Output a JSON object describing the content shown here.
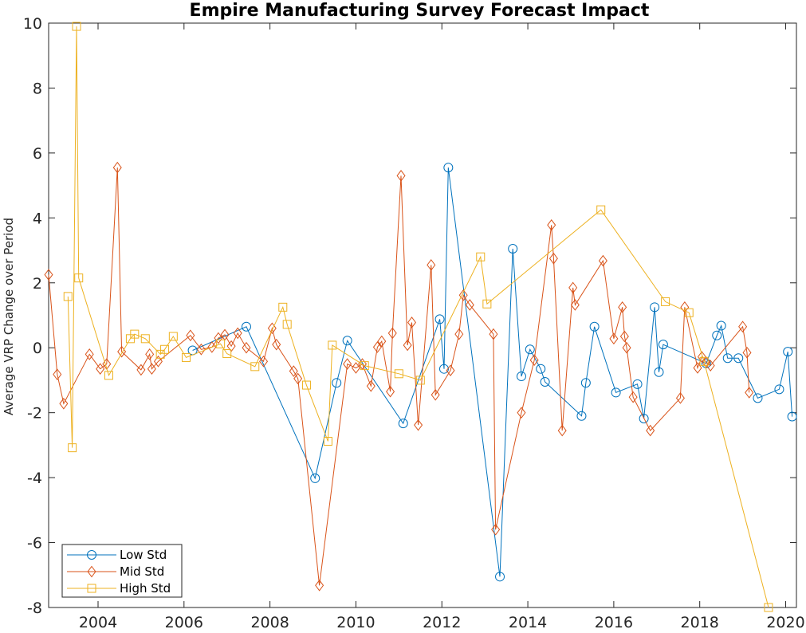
{
  "chart_data": {
    "type": "line",
    "title": "Empire Manufacturing Survey Forecast Impact",
    "xlabel": "",
    "ylabel": "Average VRP Change over Period",
    "xlim": [
      2002.85,
      2020.25
    ],
    "ylim": [
      -8,
      10
    ],
    "xticks": [
      "2004",
      "2006",
      "2008",
      "2010",
      "2012",
      "2014",
      "2016",
      "2018",
      "2020"
    ],
    "yticks": [
      "10",
      "8",
      "6",
      "4",
      "2",
      "0",
      "-2",
      "-4",
      "-6",
      "-8"
    ],
    "legend_position": "bottom-left",
    "grid": false,
    "series": [
      {
        "name": "Low Std",
        "color": "#0072BD",
        "marker": "circle",
        "points": [
          [
            2006.2,
            -0.08
          ],
          [
            2007.45,
            0.65
          ],
          [
            2009.05,
            -4.02
          ],
          [
            2009.55,
            -1.08
          ],
          [
            2009.8,
            0.22
          ],
          [
            2011.1,
            -2.33
          ],
          [
            2011.95,
            0.88
          ],
          [
            2012.05,
            -0.65
          ],
          [
            2012.15,
            5.55
          ],
          [
            2013.35,
            -7.05
          ],
          [
            2013.65,
            3.05
          ],
          [
            2013.85,
            -0.88
          ],
          [
            2014.05,
            -0.05
          ],
          [
            2014.3,
            -0.65
          ],
          [
            2014.4,
            -1.05
          ],
          [
            2015.25,
            -2.1
          ],
          [
            2015.35,
            -1.08
          ],
          [
            2015.55,
            0.65
          ],
          [
            2016.05,
            -1.38
          ],
          [
            2016.55,
            -1.12
          ],
          [
            2016.7,
            -2.18
          ],
          [
            2016.95,
            1.25
          ],
          [
            2017.05,
            -0.75
          ],
          [
            2017.15,
            0.1
          ],
          [
            2018.15,
            -0.48
          ],
          [
            2018.4,
            0.38
          ],
          [
            2018.5,
            0.68
          ],
          [
            2018.65,
            -0.32
          ],
          [
            2018.9,
            -0.32
          ],
          [
            2019.35,
            -1.55
          ],
          [
            2019.85,
            -1.28
          ],
          [
            2020.05,
            -0.12
          ],
          [
            2020.15,
            -2.12
          ]
        ]
      },
      {
        "name": "Mid Std",
        "color": "#D95319",
        "marker": "diamond",
        "points": [
          [
            2002.85,
            2.25
          ],
          [
            2003.05,
            -0.82
          ],
          [
            2003.2,
            -1.72
          ],
          [
            2003.8,
            -0.2
          ],
          [
            2004.05,
            -0.65
          ],
          [
            2004.2,
            -0.5
          ],
          [
            2004.45,
            5.55
          ],
          [
            2004.55,
            -0.12
          ],
          [
            2005.0,
            -0.68
          ],
          [
            2005.2,
            -0.2
          ],
          [
            2005.25,
            -0.65
          ],
          [
            2005.4,
            -0.42
          ],
          [
            2006.15,
            0.38
          ],
          [
            2006.4,
            -0.05
          ],
          [
            2006.65,
            0.02
          ],
          [
            2006.8,
            0.3
          ],
          [
            2006.95,
            0.4
          ],
          [
            2007.1,
            0.05
          ],
          [
            2007.25,
            0.45
          ],
          [
            2007.45,
            0.0
          ],
          [
            2007.85,
            -0.42
          ],
          [
            2008.05,
            0.6
          ],
          [
            2008.15,
            0.1
          ],
          [
            2008.55,
            -0.72
          ],
          [
            2008.65,
            -0.95
          ],
          [
            2009.15,
            -7.32
          ],
          [
            2009.8,
            -0.5
          ],
          [
            2010.0,
            -0.62
          ],
          [
            2010.15,
            -0.5
          ],
          [
            2010.35,
            -1.18
          ],
          [
            2010.5,
            0.02
          ],
          [
            2010.6,
            0.2
          ],
          [
            2010.8,
            -1.35
          ],
          [
            2010.85,
            0.45
          ],
          [
            2011.05,
            5.3
          ],
          [
            2011.2,
            0.08
          ],
          [
            2011.3,
            0.78
          ],
          [
            2011.45,
            -2.38
          ],
          [
            2011.75,
            2.55
          ],
          [
            2011.85,
            -1.45
          ],
          [
            2012.2,
            -0.7
          ],
          [
            2012.4,
            0.42
          ],
          [
            2012.5,
            1.62
          ],
          [
            2012.65,
            1.32
          ],
          [
            2013.2,
            0.42
          ],
          [
            2013.25,
            -5.6
          ],
          [
            2013.85,
            -2.0
          ],
          [
            2014.15,
            -0.38
          ],
          [
            2014.55,
            3.78
          ],
          [
            2014.6,
            2.75
          ],
          [
            2014.8,
            -2.55
          ],
          [
            2015.05,
            1.85
          ],
          [
            2015.1,
            1.32
          ],
          [
            2015.75,
            2.68
          ],
          [
            2016.0,
            0.28
          ],
          [
            2016.2,
            1.25
          ],
          [
            2016.25,
            0.35
          ],
          [
            2016.3,
            0.0
          ],
          [
            2016.45,
            -1.52
          ],
          [
            2016.85,
            -2.55
          ],
          [
            2017.55,
            -1.55
          ],
          [
            2017.65,
            1.25
          ],
          [
            2017.95,
            -0.62
          ],
          [
            2018.05,
            -0.28
          ],
          [
            2018.15,
            -0.45
          ],
          [
            2018.25,
            -0.55
          ],
          [
            2019.0,
            0.65
          ],
          [
            2019.1,
            -0.15
          ],
          [
            2019.15,
            -1.38
          ]
        ]
      },
      {
        "name": "High Std",
        "color": "#EDB120",
        "marker": "square",
        "points": [
          [
            2003.3,
            1.58
          ],
          [
            2003.4,
            -3.08
          ],
          [
            2003.5,
            9.9
          ],
          [
            2003.55,
            2.15
          ],
          [
            2004.25,
            -0.85
          ],
          [
            2004.75,
            0.28
          ],
          [
            2004.85,
            0.42
          ],
          [
            2005.1,
            0.28
          ],
          [
            2005.45,
            -0.2
          ],
          [
            2005.55,
            -0.05
          ],
          [
            2005.75,
            0.35
          ],
          [
            2006.05,
            -0.3
          ],
          [
            2006.85,
            0.12
          ],
          [
            2007.0,
            -0.18
          ],
          [
            2007.65,
            -0.58
          ],
          [
            2008.3,
            1.25
          ],
          [
            2008.4,
            0.72
          ],
          [
            2008.85,
            -1.15
          ],
          [
            2009.35,
            -2.88
          ],
          [
            2009.45,
            0.08
          ],
          [
            2010.2,
            -0.55
          ],
          [
            2011.0,
            -0.8
          ],
          [
            2011.5,
            -1.0
          ],
          [
            2012.9,
            2.8
          ],
          [
            2013.05,
            1.35
          ],
          [
            2015.7,
            4.25
          ],
          [
            2017.2,
            1.42
          ],
          [
            2017.75,
            1.08
          ],
          [
            2018.1,
            -0.42
          ],
          [
            2019.6,
            -8.0
          ]
        ]
      }
    ]
  }
}
